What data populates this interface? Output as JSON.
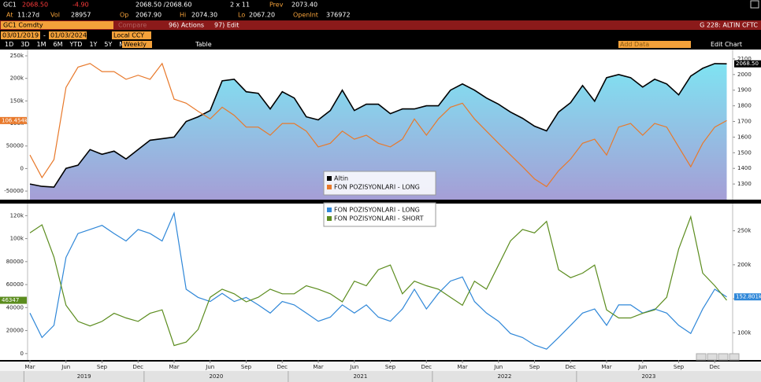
{
  "quote": {
    "ticker": "GC1",
    "last": "2068.50",
    "change": "-4.90",
    "bid_ask": "2068.50 /2068.60",
    "size": "2 x 11",
    "prev_label": "Prev",
    "prev": "2073.40",
    "time_label": "At",
    "time": "11:27d",
    "vol_label": "Vol",
    "vol": "28957",
    "op_label": "Op",
    "op": "2067.90",
    "hi_label": "Hi",
    "hi": "2074.30",
    "lo_label": "Lo",
    "lo": "2067.20",
    "oi_label": "OpenInt",
    "oi": "376972"
  },
  "toolbar": {
    "security": "GC1 Comdty",
    "compare": "Compare",
    "actions": "96) Actions",
    "edit": "97) Edit",
    "page_code": "G 228: ALTIN CFTC",
    "start_date": "03/01/2019",
    "end_date": "01/03/2024",
    "currency": "Local CCY",
    "periods": [
      "1D",
      "3D",
      "1M",
      "6M",
      "YTD",
      "1Y",
      "5Y",
      "Max"
    ],
    "frequency": "Weekly",
    "table": "Table",
    "add_data": "Add Data",
    "edit_chart": "Edit Chart"
  },
  "x": [
    "2019-03",
    "2019-04",
    "2019-05",
    "2019-06",
    "2019-07",
    "2019-08",
    "2019-09",
    "2019-10",
    "2019-11",
    "2019-12",
    "2020-01",
    "2020-02",
    "2020-03",
    "2020-04",
    "2020-05",
    "2020-06",
    "2020-07",
    "2020-08",
    "2020-09",
    "2020-10",
    "2020-11",
    "2020-12",
    "2021-01",
    "2021-02",
    "2021-03",
    "2021-04",
    "2021-05",
    "2021-06",
    "2021-07",
    "2021-08",
    "2021-09",
    "2021-10",
    "2021-11",
    "2021-12",
    "2022-01",
    "2022-02",
    "2022-03",
    "2022-04",
    "2022-05",
    "2022-06",
    "2022-07",
    "2022-08",
    "2022-09",
    "2022-10",
    "2022-11",
    "2022-12",
    "2023-01",
    "2023-02",
    "2023-03",
    "2023-04",
    "2023-05",
    "2023-06",
    "2023-07",
    "2023-08",
    "2023-09",
    "2023-10",
    "2023-11",
    "2023-12",
    "2024-01"
  ],
  "xticks": [
    {
      "value": "2019-03",
      "label": "Mar"
    },
    {
      "value": "2019-06",
      "label": "Jun"
    },
    {
      "value": "2019-09",
      "label": "Sep"
    },
    {
      "value": "2019-12",
      "label": "Dec"
    },
    {
      "value": "2020-03",
      "label": "Mar"
    },
    {
      "value": "2020-06",
      "label": "Jun"
    },
    {
      "value": "2020-09",
      "label": "Sep"
    },
    {
      "value": "2020-12",
      "label": "Dec"
    },
    {
      "value": "2021-03",
      "label": "Mar"
    },
    {
      "value": "2021-06",
      "label": "Jun"
    },
    {
      "value": "2021-09",
      "label": "Sep"
    },
    {
      "value": "2021-12",
      "label": "Dec"
    },
    {
      "value": "2022-03",
      "label": "Mar"
    },
    {
      "value": "2022-06",
      "label": "Jun"
    },
    {
      "value": "2022-09",
      "label": "Sep"
    },
    {
      "value": "2022-12",
      "label": "Dec"
    },
    {
      "value": "2023-03",
      "label": "Mar"
    },
    {
      "value": "2023-06",
      "label": "Jun"
    },
    {
      "value": "2023-09",
      "label": "Sep"
    },
    {
      "value": "2023-12",
      "label": "Dec"
    }
  ],
  "years": [
    "2019",
    "2020",
    "2021",
    "2022",
    "2023"
  ],
  "charts": [
    {
      "type": "line",
      "ylim": [
        -69000,
        264000
      ],
      "yticks": [
        -50000,
        0,
        50000,
        {
          "value": 100000,
          "label": "100k"
        },
        {
          "value": 150000,
          "label": "150k"
        },
        {
          "value": 200000,
          "label": "200k"
        },
        {
          "value": 250000,
          "label": "250k"
        }
      ],
      "y2lim": [
        1200,
        2160
      ],
      "y2ticks": [
        1300,
        1400,
        1500,
        1600,
        1700,
        1800,
        1900,
        2000,
        2100
      ],
      "series": [
        {
          "name": "Altin",
          "type": "area",
          "axis": "y2",
          "color": "#000000",
          "last_label": "2068.50",
          "values": [
            1300,
            1285,
            1280,
            1400,
            1420,
            1520,
            1490,
            1510,
            1460,
            1520,
            1580,
            1590,
            1600,
            1700,
            1730,
            1770,
            1960,
            1970,
            1890,
            1880,
            1780,
            1890,
            1850,
            1730,
            1710,
            1770,
            1900,
            1770,
            1810,
            1810,
            1750,
            1780,
            1780,
            1800,
            1800,
            1900,
            1940,
            1900,
            1850,
            1810,
            1760,
            1720,
            1670,
            1640,
            1760,
            1820,
            1930,
            1830,
            1980,
            2000,
            1980,
            1920,
            1970,
            1940,
            1870,
            1990,
            2040,
            2070,
            2068.5
          ]
        },
        {
          "name": "FON POZISYONLARI - LONG",
          "axis": "y",
          "color": "#e8792b",
          "last_label": "106.454k",
          "values": [
            30000,
            -20000,
            20000,
            180000,
            225000,
            233000,
            215000,
            215000,
            198000,
            207000,
            198000,
            233000,
            154000,
            145000,
            127000,
            110000,
            136000,
            118000,
            92000,
            92000,
            74000,
            100000,
            100000,
            83000,
            48000,
            56000,
            83000,
            65000,
            74000,
            56000,
            48000,
            65000,
            110000,
            74000,
            110000,
            136000,
            145000,
            110000,
            83000,
            56000,
            30000,
            4000,
            -23000,
            -40000,
            -5000,
            21000,
            56000,
            65000,
            30000,
            92000,
            100000,
            74000,
            100000,
            92000,
            48000,
            4000,
            56000,
            92000,
            106454
          ]
        }
      ]
    },
    {
      "type": "line",
      "ylim": [
        -5600,
        130500
      ],
      "yticks": [
        0,
        20000,
        40000,
        60000,
        80000,
        {
          "value": 100000,
          "label": "100k"
        },
        {
          "value": 120000,
          "label": "120k"
        }
      ],
      "y2lim": [
        60000,
        290000
      ],
      "y2ticks": [
        {
          "value": 100000,
          "label": "100k"
        },
        {
          "value": 150000,
          "label": "150k"
        },
        {
          "value": 200000,
          "label": "200k"
        },
        {
          "value": 250000,
          "label": "250k"
        }
      ],
      "series": [
        {
          "name": "FON POZISYONLARI - LONG",
          "axis": "y2",
          "color": "#2f87d8",
          "last_label": "152.801k",
          "values": [
            129000,
            93000,
            111000,
            211000,
            246000,
            252000,
            258000,
            246000,
            235000,
            252000,
            246000,
            235000,
            276000,
            164000,
            152000,
            146000,
            158000,
            146000,
            152000,
            141000,
            129000,
            146000,
            141000,
            129000,
            117000,
            123000,
            141000,
            129000,
            141000,
            123000,
            117000,
            135000,
            164000,
            135000,
            158000,
            176000,
            182000,
            146000,
            129000,
            117000,
            99000,
            93000,
            82000,
            76000,
            93000,
            111000,
            129000,
            135000,
            111000,
            141000,
            141000,
            129000,
            135000,
            129000,
            111000,
            99000,
            135000,
            164000,
            152801
          ]
        },
        {
          "name": "FON POZISYONLARI - SHORT",
          "axis": "y",
          "color": "#5b8c1e",
          "last_label": "46347",
          "values": [
            105000,
            112000,
            84000,
            42000,
            28000,
            24000,
            28000,
            35000,
            31000,
            28000,
            35000,
            38000,
            7000,
            10000,
            21000,
            49000,
            56000,
            52000,
            45000,
            49000,
            56000,
            52000,
            52000,
            59000,
            56000,
            52000,
            45000,
            63000,
            59000,
            73000,
            77000,
            52000,
            63000,
            59000,
            56000,
            49000,
            42000,
            63000,
            56000,
            77000,
            98000,
            108000,
            105000,
            115000,
            73000,
            66000,
            70000,
            77000,
            38000,
            31000,
            31000,
            35000,
            38000,
            49000,
            91000,
            119000,
            70000,
            59000,
            46347
          ]
        }
      ]
    }
  ]
}
